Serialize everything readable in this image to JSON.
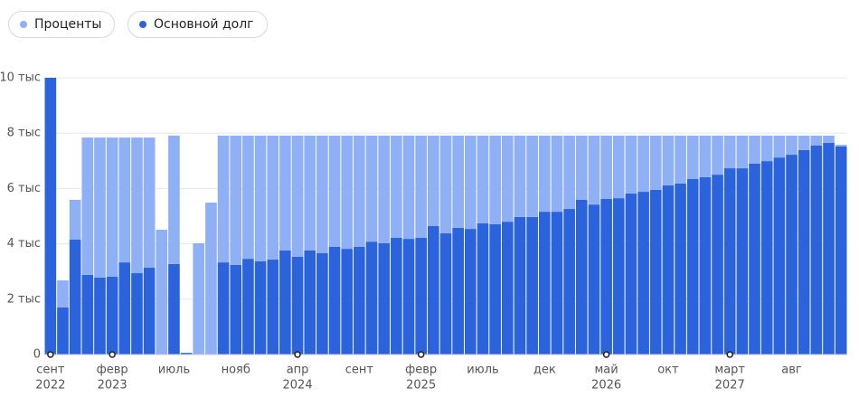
{
  "chart_data": {
    "type": "stacked_bar",
    "series": [
      {
        "name": "Проценты",
        "color": "#8fb0f5",
        "values": [
          0,
          980,
          1440,
          4960,
          5060,
          5030,
          4510,
          4900,
          4700,
          4510,
          4640,
          0,
          4020,
          5490,
          4580,
          4670,
          4450,
          4540,
          4480,
          4150,
          4380,
          4150,
          4250,
          4020,
          4090,
          4020,
          3830,
          3890,
          3690,
          3730,
          3690,
          3270,
          3530,
          3330,
          3370,
          3170,
          3200,
          3110,
          2940,
          2940,
          2750,
          2750,
          2650,
          2320,
          2490,
          2290,
          2260,
          2090,
          2030,
          1960,
          1800,
          1730,
          1570,
          1500,
          1410,
          1180,
          1180,
          1010,
          920,
          790,
          690,
          520,
          360,
          260,
          60
        ]
      },
      {
        "name": "Основной долг",
        "color": "#2b63dc",
        "values": [
          10000,
          1700,
          4150,
          2880,
          2780,
          2810,
          3330,
          2940,
          3140,
          0,
          3270,
          60,
          0,
          0,
          3330,
          3240,
          3460,
          3370,
          3430,
          3760,
          3530,
          3760,
          3660,
          3890,
          3820,
          3890,
          4080,
          4020,
          4220,
          4180,
          4220,
          4640,
          4380,
          4580,
          4540,
          4740,
          4710,
          4800,
          4970,
          4970,
          5160,
          5160,
          5260,
          5590,
          5420,
          5620,
          5650,
          5820,
          5880,
          5950,
          6110,
          6180,
          6340,
          6410,
          6500,
          6730,
          6730,
          6900,
          6990,
          7120,
          7220,
          7390,
          7550,
          7650,
          7520
        ]
      }
    ],
    "x_tick_labels": [
      {
        "index": 0,
        "label": "сент",
        "sublabel": "2022"
      },
      {
        "index": 5,
        "label": "февр",
        "sublabel": "2023"
      },
      {
        "index": 10,
        "label": "июль"
      },
      {
        "index": 15,
        "label": "нояб"
      },
      {
        "index": 20,
        "label": "апр",
        "sublabel": "2024"
      },
      {
        "index": 25,
        "label": "сент"
      },
      {
        "index": 30,
        "label": "февр",
        "sublabel": "2025"
      },
      {
        "index": 35,
        "label": "июль"
      },
      {
        "index": 40,
        "label": "дек"
      },
      {
        "index": 45,
        "label": "май",
        "sublabel": "2026"
      },
      {
        "index": 50,
        "label": "окт"
      },
      {
        "index": 55,
        "label": "март",
        "sublabel": "2027"
      },
      {
        "index": 60,
        "label": "авг"
      }
    ],
    "ylim": [
      0,
      10000
    ],
    "yticks": [
      0,
      {
        "value": 2000,
        "label": "2 тыс"
      },
      {
        "value": 4000,
        "label": "4 тыс"
      },
      {
        "value": 6000,
        "label": "6 тыс"
      },
      {
        "value": 8000,
        "label": "8 тыс"
      },
      {
        "value": 10000,
        "label": "10 тыс"
      }
    ],
    "grid": true
  }
}
